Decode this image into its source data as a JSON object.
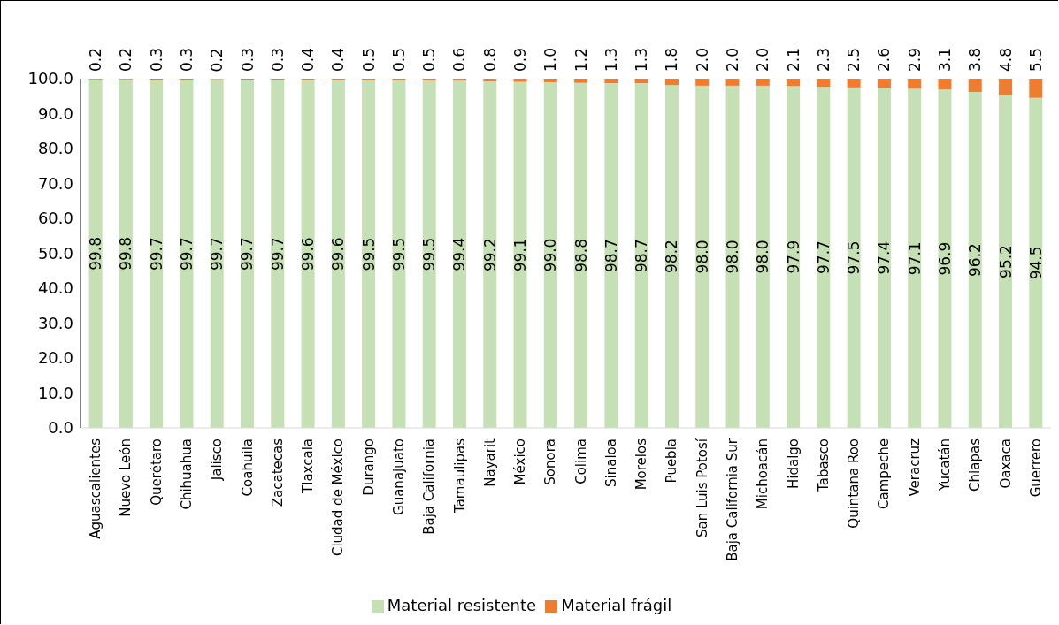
{
  "chart_data": {
    "type": "bar",
    "stacked": true,
    "legend": "bottom",
    "grid": false,
    "categories": [
      "Aguascalientes",
      "Nuevo León",
      "Querétaro",
      "Chihuahua",
      "Jalisco",
      "Coahuila",
      "Zacatecas",
      "Tlaxcala",
      "Ciudad de México",
      "Durango",
      "Guanajuato",
      "Baja California",
      "Tamaulipas",
      "Nayarit",
      "México",
      "Sonora",
      "Colima",
      "Sinaloa",
      "Morelos",
      "Puebla",
      "San Luis Potosí",
      "Baja California Sur",
      "Michoacán",
      "Hidalgo",
      "Tabasco",
      "Quintana Roo",
      "Campeche",
      "Veracruz",
      "Yucatán",
      "Chiapas",
      "Oaxaca",
      "Guerrero"
    ],
    "series": [
      {
        "name": "Material resistente",
        "color": "#c5e0b4",
        "values": [
          99.8,
          99.8,
          99.7,
          99.7,
          99.7,
          99.7,
          99.7,
          99.6,
          99.6,
          99.5,
          99.5,
          99.5,
          99.4,
          99.2,
          99.1,
          99.0,
          98.8,
          98.7,
          98.7,
          98.2,
          98.0,
          98.0,
          98.0,
          97.9,
          97.7,
          97.5,
          97.4,
          97.1,
          96.9,
          96.2,
          95.2,
          94.5
        ],
        "value_labels": [
          "99.8",
          "99.8",
          "99.7",
          "99.7",
          "99.7",
          "99.7",
          "99.7",
          "99.6",
          "99.6",
          "99.5",
          "99.5",
          "99.5",
          "99.4",
          "99.2",
          "99.1",
          "99.0",
          "98.8",
          "98.7",
          "98.7",
          "98.2",
          "98.0",
          "98.0",
          "98.0",
          "97.9",
          "97.7",
          "97.5",
          "97.4",
          "97.1",
          "96.9",
          "96.2",
          "95.2",
          "94.5"
        ]
      },
      {
        "name": "Material frágil",
        "color": "#ed7d31",
        "values": [
          0.2,
          0.2,
          0.3,
          0.3,
          0.2,
          0.3,
          0.3,
          0.4,
          0.4,
          0.5,
          0.5,
          0.5,
          0.6,
          0.8,
          0.9,
          1.0,
          1.2,
          1.3,
          1.3,
          1.8,
          2.0,
          2.0,
          2.0,
          2.1,
          2.3,
          2.5,
          2.6,
          2.9,
          3.1,
          3.8,
          4.8,
          5.5
        ],
        "value_labels": [
          "0.2",
          "0.2",
          "0.3",
          "0.3",
          "0.2",
          "0.3",
          "0.3",
          "0.4",
          "0.4",
          "0.5",
          "0.5",
          "0.5",
          "0.6",
          "0.8",
          "0.9",
          "1.0",
          "1.2",
          "1.3",
          "1.3",
          "1.8",
          "2.0",
          "2.0",
          "2.0",
          "2.1",
          "2.3",
          "2.5",
          "2.6",
          "2.9",
          "3.1",
          "3.8",
          "4.8",
          "5.5"
        ]
      }
    ],
    "ylim": [
      0,
      100
    ],
    "yticks": [
      {
        "value": 0,
        "label": "0.0"
      },
      {
        "value": 10,
        "label": "10.0"
      },
      {
        "value": 20,
        "label": "20.0"
      },
      {
        "value": 30,
        "label": "30.0"
      },
      {
        "value": 40,
        "label": "40.0"
      },
      {
        "value": 50,
        "label": "50.0"
      },
      {
        "value": 60,
        "label": "60.0"
      },
      {
        "value": 70,
        "label": "70.0"
      },
      {
        "value": 80,
        "label": "80.0"
      },
      {
        "value": 90,
        "label": "90.0"
      },
      {
        "value": 100,
        "label": "100.0"
      }
    ]
  }
}
